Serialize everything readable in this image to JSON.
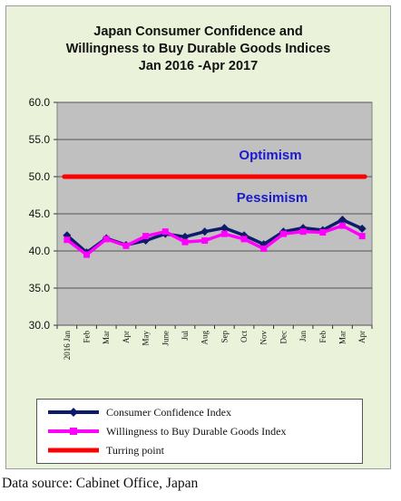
{
  "title_lines": [
    "Japan Consumer Confidence and",
    "Willingness  to Buy Durable Goods Indices",
    "Jan 2016 -Apr 2017"
  ],
  "annotations": {
    "upper": "Optimism",
    "lower": "Pessimism"
  },
  "source": "Data source: Cabinet Office, Japan",
  "colors": {
    "plot_bg": "#c0c0c0",
    "frame_bg": "#eaf3d9",
    "consumer": "#0d1b6b",
    "willingness": "#ff00ff",
    "turning": "#ff0000",
    "annotation": "#1a1acc"
  },
  "chart_data": {
    "type": "line",
    "title": "Japan Consumer Confidence and Willingness  to Buy Durable Goods Indices Jan 2016 -Apr 2017",
    "xlabel": "",
    "ylabel": "",
    "ylim": [
      30,
      60
    ],
    "yticks": [
      "30.0",
      "35.0",
      "40.0",
      "45.0",
      "50.0",
      "55.0",
      "60.0"
    ],
    "grid": true,
    "legend_position": "bottom",
    "categories": [
      "2016 Jan",
      "Feb",
      "Mar",
      "Apr",
      "May",
      "June",
      "Jul",
      "Aug",
      "Sep",
      "Oct",
      "Nov",
      "Dec",
      "Jan",
      "Feb",
      "Mar",
      "Apr"
    ],
    "series": [
      {
        "name": "Consumer Confidence Index",
        "values": [
          42.1,
          39.8,
          41.7,
          40.8,
          41.4,
          42.3,
          41.9,
          42.6,
          43.1,
          42.1,
          40.9,
          42.6,
          43.1,
          42.8,
          44.2,
          43.0
        ]
      },
      {
        "name": "Willingness to Buy Durable Goods Index",
        "values": [
          41.5,
          39.5,
          41.6,
          40.7,
          42.0,
          42.6,
          41.2,
          41.4,
          42.3,
          41.6,
          40.3,
          42.3,
          42.6,
          42.5,
          43.4,
          42.0
        ]
      },
      {
        "name": "Turring point",
        "values": [
          50,
          50,
          50,
          50,
          50,
          50,
          50,
          50,
          50,
          50,
          50,
          50,
          50,
          50,
          50,
          50
        ]
      }
    ]
  }
}
